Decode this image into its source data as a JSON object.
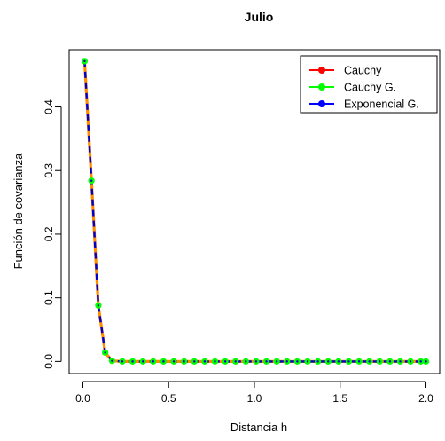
{
  "chart_data": {
    "type": "line",
    "title": "Julio",
    "xlabel": "Distancia h",
    "ylabel": "Función de covarianza",
    "xlim": [
      -0.08,
      2.08
    ],
    "ylim": [
      -0.019,
      0.49
    ],
    "xticks": [
      0.0,
      0.5,
      1.0,
      1.5,
      2.0
    ],
    "xtick_labels": [
      "0.0",
      "0.5",
      "1.0",
      "1.5",
      "2.0"
    ],
    "yticks": [
      0.0,
      0.1,
      0.2,
      0.3,
      0.4
    ],
    "ytick_labels": [
      "0.0",
      "0.1",
      "0.2",
      "0.3",
      "0.4"
    ],
    "legend_position": "top-right",
    "grid": false,
    "x": [
      0.01,
      0.05,
      0.09,
      0.13,
      0.17,
      0.23,
      0.29,
      0.35,
      0.41,
      0.47,
      0.53,
      0.59,
      0.65,
      0.71,
      0.77,
      0.83,
      0.89,
      0.95,
      1.01,
      1.07,
      1.13,
      1.19,
      1.25,
      1.31,
      1.37,
      1.43,
      1.49,
      1.55,
      1.61,
      1.67,
      1.73,
      1.79,
      1.85,
      1.91,
      1.97,
      2.0
    ],
    "series": [
      {
        "name": "Cauchy",
        "color": "#ff0000",
        "values": [
          0.472,
          0.284,
          0.088,
          0.014,
          0.001,
          0.0,
          0.0,
          0.0,
          0.0,
          0.0,
          0.0,
          0.0,
          0.0,
          0.0,
          0.0,
          0.0,
          0.0,
          0.0,
          0.0,
          0.0,
          0.0,
          0.0,
          0.0,
          0.0,
          0.0,
          0.0,
          0.0,
          0.0,
          0.0,
          0.0,
          0.0,
          0.0,
          0.0,
          0.0,
          0.0,
          0.0
        ]
      },
      {
        "name": "Cauchy G.",
        "color": "#00ff00",
        "values": [
          0.472,
          0.284,
          0.088,
          0.014,
          0.001,
          0.0,
          0.0,
          0.0,
          0.0,
          0.0,
          0.0,
          0.0,
          0.0,
          0.0,
          0.0,
          0.0,
          0.0,
          0.0,
          0.0,
          0.0,
          0.0,
          0.0,
          0.0,
          0.0,
          0.0,
          0.0,
          0.0,
          0.0,
          0.0,
          0.0,
          0.0,
          0.0,
          0.0,
          0.0,
          0.0,
          0.0
        ]
      },
      {
        "name": "Exponencial G.",
        "color": "#0000ff",
        "values": [
          0.472,
          0.284,
          0.088,
          0.014,
          0.001,
          0.0,
          0.0,
          0.0,
          0.0,
          0.0,
          0.0,
          0.0,
          0.0,
          0.0,
          0.0,
          0.0,
          0.0,
          0.0,
          0.0,
          0.0,
          0.0,
          0.0,
          0.0,
          0.0,
          0.0,
          0.0,
          0.0,
          0.0,
          0.0,
          0.0,
          0.0,
          0.0,
          0.0,
          0.0,
          0.0,
          0.0
        ]
      }
    ],
    "line_colors": {
      "orange_underlay": "#ff8c00",
      "dash_overlay": "#0000cc"
    }
  }
}
